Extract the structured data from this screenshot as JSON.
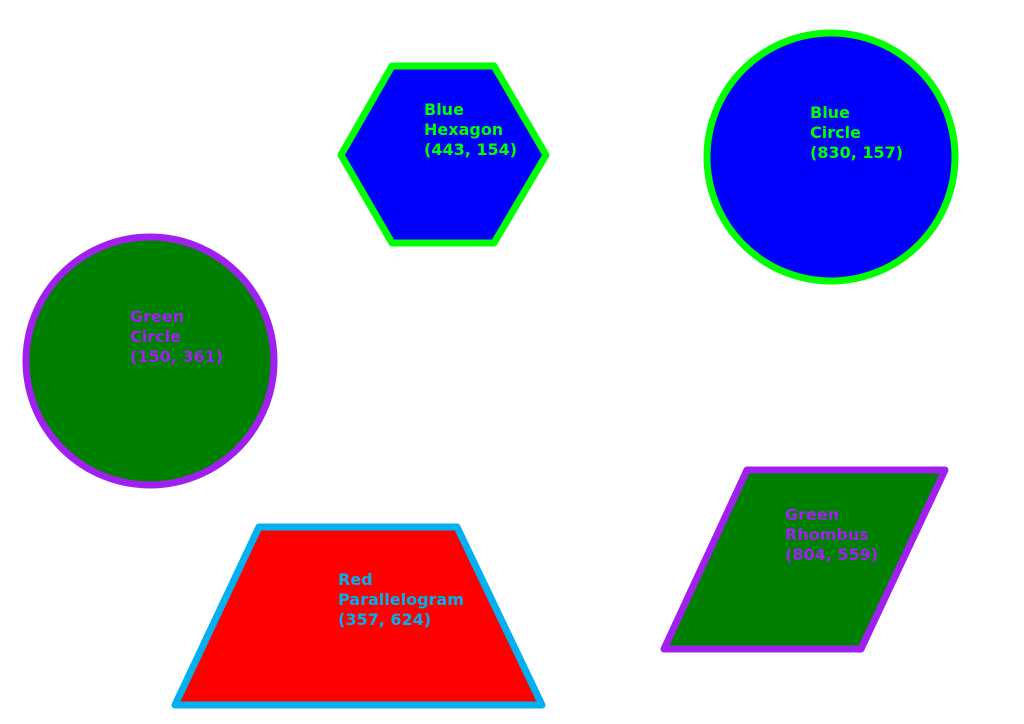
{
  "shapes": [
    {
      "id": "blue-hexagon",
      "kind": "hexagon",
      "fill": "#0000ff",
      "stroke": "#00ff00",
      "label_color": "#00ff00",
      "label_lines": [
        "Blue",
        "Hexagon",
        "(443, 154)"
      ]
    },
    {
      "id": "blue-circle",
      "kind": "circle",
      "fill": "#0000ff",
      "stroke": "#00ff00",
      "label_color": "#00ff00",
      "label_lines": [
        "Blue",
        "Circle",
        "(830, 157)"
      ]
    },
    {
      "id": "green-circle",
      "kind": "circle",
      "fill": "#008000",
      "stroke": "#a020f0",
      "label_color": "#a020f0",
      "label_lines": [
        "Green",
        "Circle",
        "(150, 361)"
      ]
    },
    {
      "id": "red-parallelogram",
      "kind": "trapezoid",
      "fill": "#ff0000",
      "stroke": "#00b0f0",
      "label_color": "#00b0f0",
      "label_lines": [
        "Red",
        "Parallelogram",
        "(357, 624)"
      ]
    },
    {
      "id": "green-rhombus",
      "kind": "parallelogram",
      "fill": "#008000",
      "stroke": "#a020f0",
      "label_color": "#a020f0",
      "label_lines": [
        "Green",
        "Rhombus",
        "(804, 559)"
      ]
    }
  ]
}
